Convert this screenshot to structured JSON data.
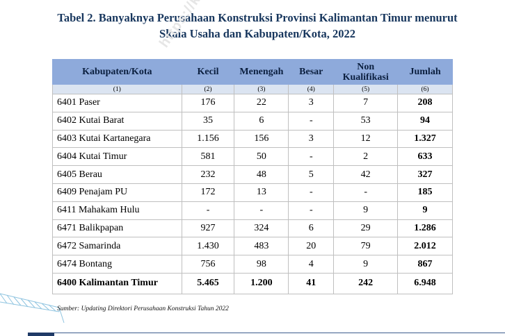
{
  "title": {
    "line1": "Tabel 2. Banyaknya Perusahaan Konstruksi Provinsi Kalimantan Timur menurut",
    "line2": "Skala Usaha dan Kabupaten/Kota, 2022"
  },
  "watermark": "https://kaltim",
  "table": {
    "headers": [
      "Kabupaten/Kota",
      "Kecil",
      "Menengah",
      "Besar",
      "Non Kualifikasi",
      "Jumlah"
    ],
    "header_nonkual_line1": "Non",
    "header_nonkual_line2": "Kualifikasi",
    "col_numbers": [
      "(1)",
      "(2)",
      "(3)",
      "(4)",
      "(5)",
      "(6)"
    ],
    "rows": [
      [
        "6401 Paser",
        "176",
        "22",
        "3",
        "7",
        "208"
      ],
      [
        "6402 Kutai Barat",
        "35",
        "6",
        "-",
        "53",
        "94"
      ],
      [
        "6403 Kutai Kartanegara",
        "1.156",
        "156",
        "3",
        "12",
        "1.327"
      ],
      [
        "6404 Kutai Timur",
        "581",
        "50",
        "-",
        "2",
        "633"
      ],
      [
        "6405 Berau",
        "232",
        "48",
        "5",
        "42",
        "327"
      ],
      [
        "6409 Penajam PU",
        "172",
        "13",
        "-",
        "-",
        "185"
      ],
      [
        "6411 Mahakam Hulu",
        "-",
        "-",
        "-",
        "9",
        "9"
      ],
      [
        "6471 Balikpapan",
        "927",
        "324",
        "6",
        "29",
        "1.286"
      ],
      [
        "6472 Samarinda",
        "1.430",
        "483",
        "20",
        "79",
        "2.012"
      ],
      [
        "6474 Bontang",
        "756",
        "98",
        "4",
        "9",
        "867"
      ]
    ],
    "total": [
      "6400 Kalimantan Timur",
      "5.465",
      "1.200",
      "41",
      "242",
      "6.948"
    ]
  },
  "source": "Sumber: Updating Direktori Perusahaan Konstruksi Tahun 2022",
  "colors": {
    "title": "#17365d",
    "header_bg": "#8eaadb",
    "subheader_bg": "#dbe4f1",
    "border": "#bfbfbf"
  },
  "icons": {
    "crane": "crane-icon"
  }
}
